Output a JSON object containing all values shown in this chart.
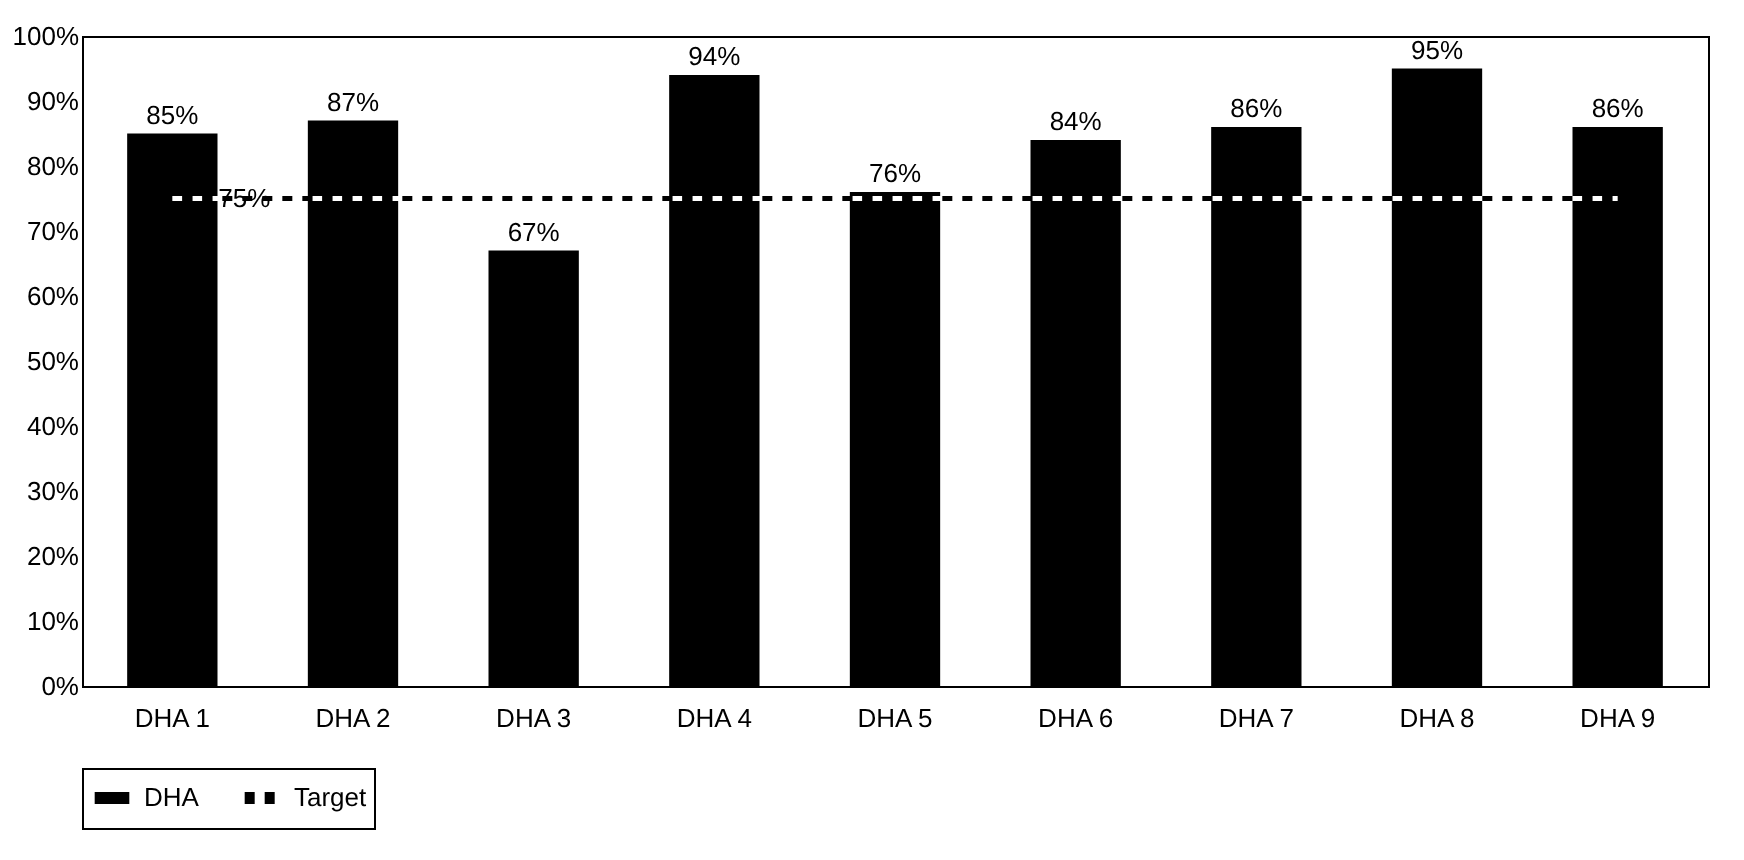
{
  "chart_data": {
    "type": "bar",
    "categories": [
      "DHA 1",
      "DHA 2",
      "DHA 3",
      "DHA 4",
      "DHA 5",
      "DHA 6",
      "DHA 7",
      "DHA 8",
      "DHA 9"
    ],
    "series": [
      {
        "name": "DHA",
        "color": "#000000",
        "values": [
          85,
          87,
          67,
          94,
          76,
          84,
          86,
          95,
          86
        ],
        "value_labels": [
          "85%",
          "87%",
          "67%",
          "94%",
          "76%",
          "84%",
          "86%",
          "95%",
          "86%"
        ]
      },
      {
        "name": "Target",
        "type": "line",
        "color": "#000000",
        "line_style": "dashed",
        "values": [
          75,
          75,
          75,
          75,
          75,
          75,
          75,
          75,
          75
        ],
        "value_labels": [
          "75%",
          null,
          null,
          null,
          null,
          null,
          null,
          null,
          null
        ]
      }
    ],
    "ylim": [
      0,
      100
    ],
    "yticks": [
      {
        "value": 0,
        "label": "0%"
      },
      {
        "value": 10,
        "label": "10%"
      },
      {
        "value": 20,
        "label": "20%"
      },
      {
        "value": 30,
        "label": "30%"
      },
      {
        "value": 40,
        "label": "40%"
      },
      {
        "value": 50,
        "label": "50%"
      },
      {
        "value": 60,
        "label": "60%"
      },
      {
        "value": 70,
        "label": "70%"
      },
      {
        "value": 80,
        "label": "80%"
      },
      {
        "value": 90,
        "label": "90%"
      },
      {
        "value": 100,
        "label": "100%"
      }
    ],
    "grid": false,
    "legend": "bottom"
  }
}
